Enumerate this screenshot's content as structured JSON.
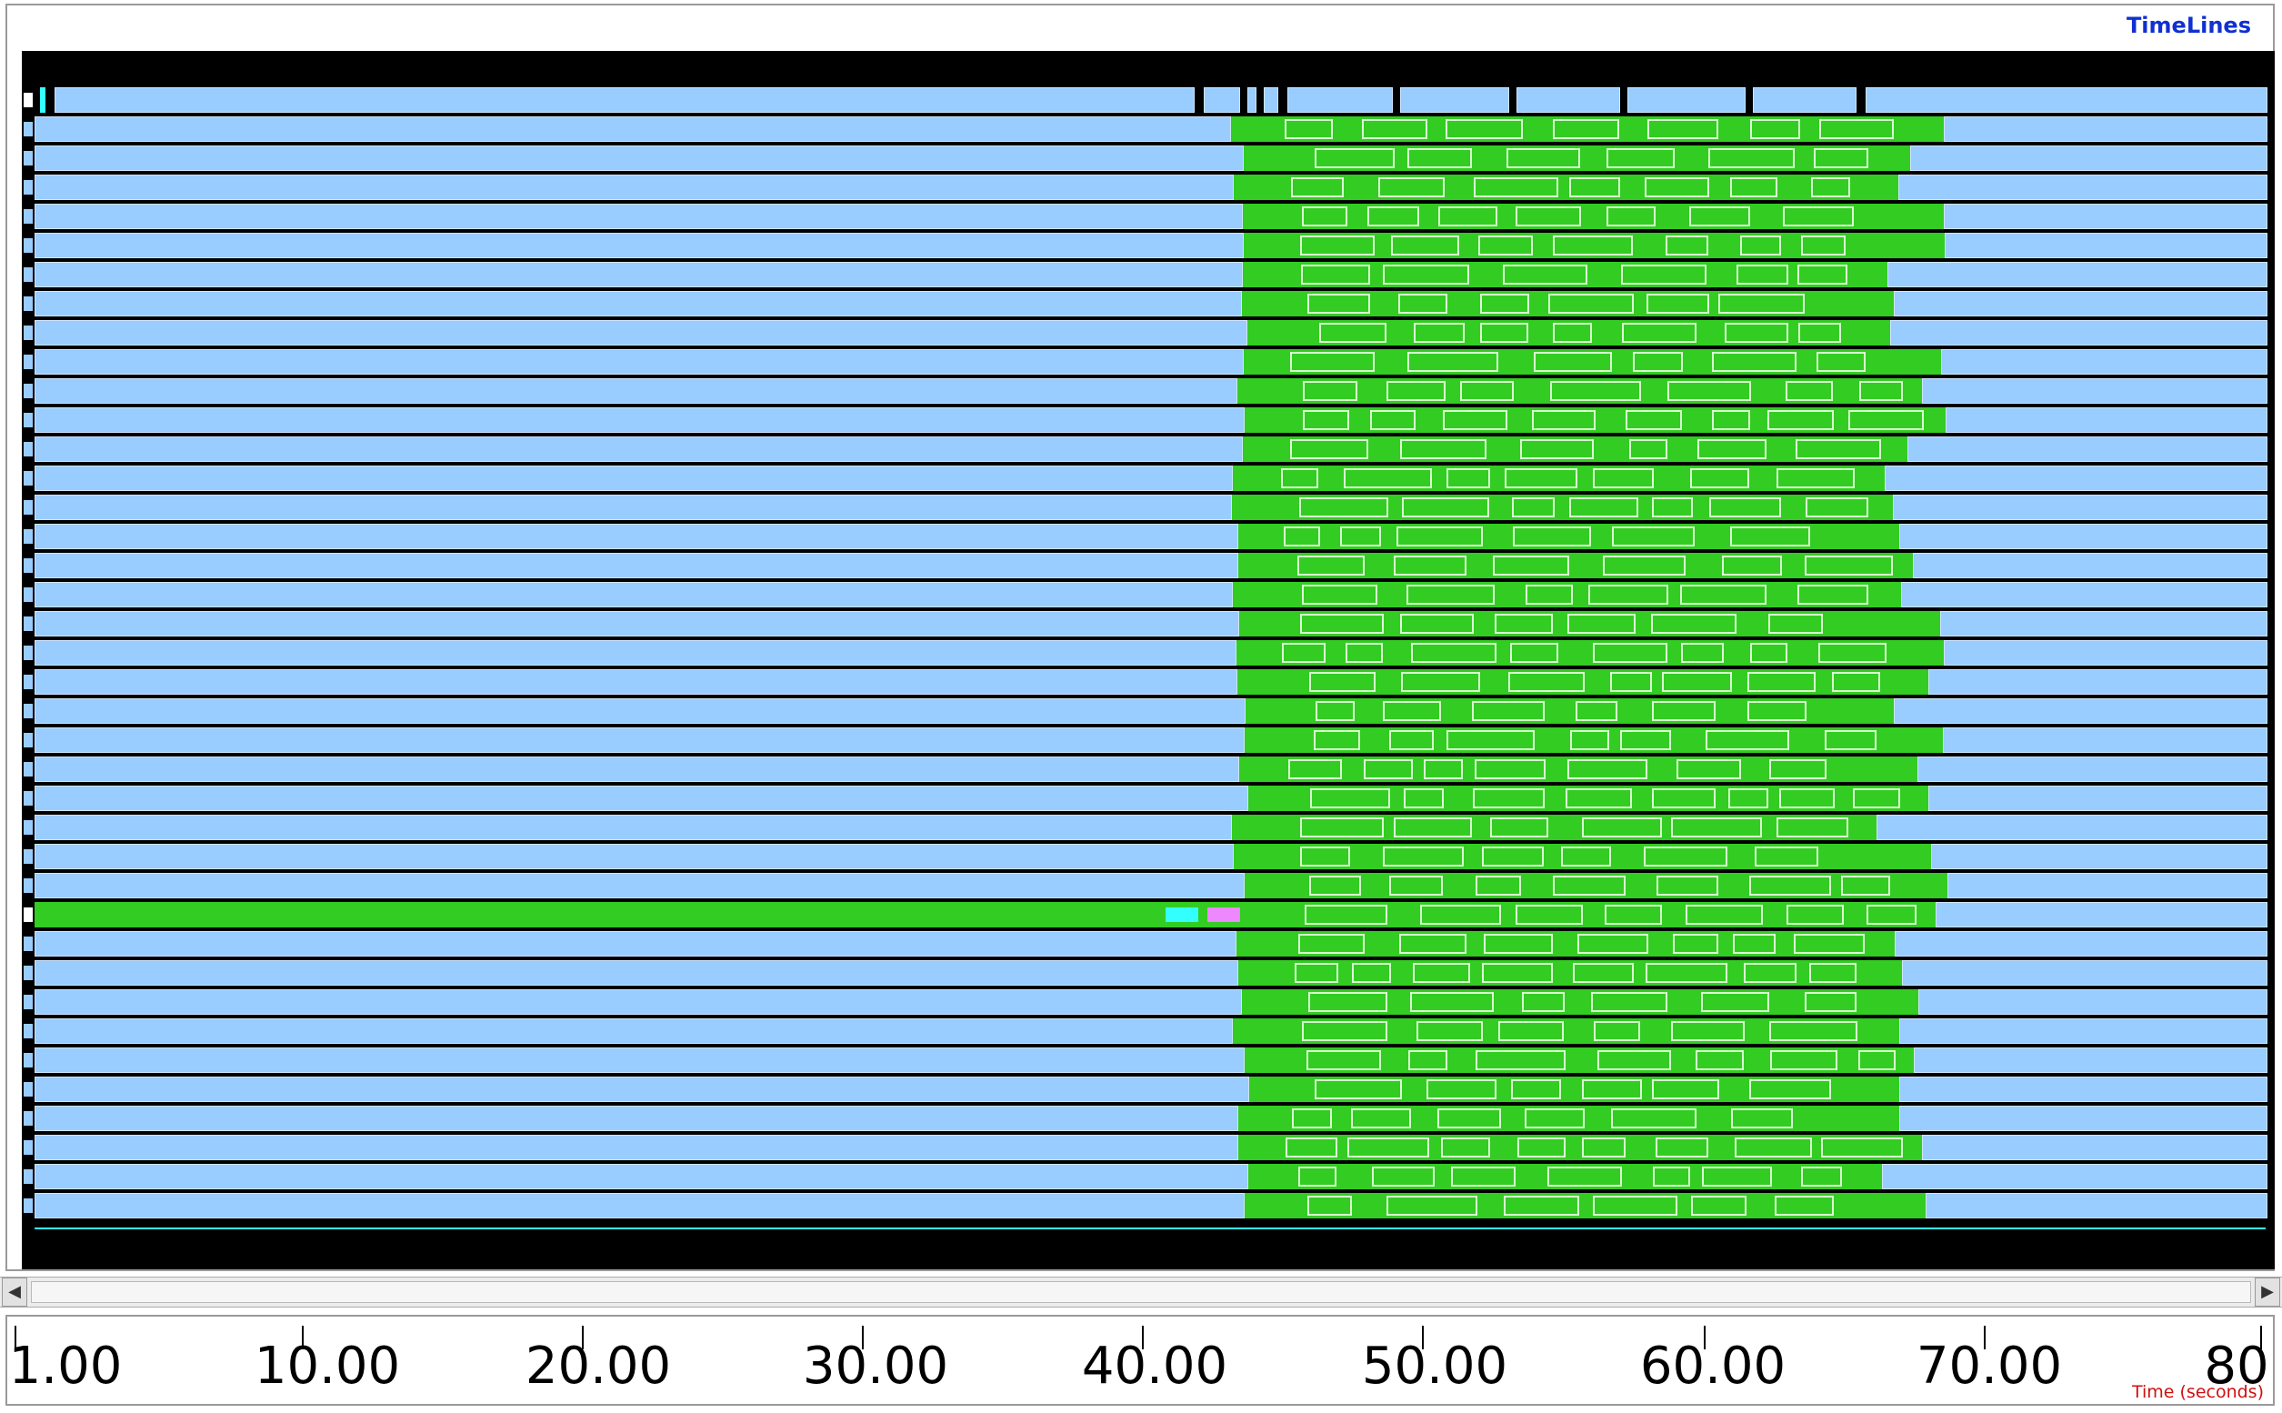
{
  "panel": {
    "title": "TimeLines"
  },
  "axis": {
    "ticks": [
      "1.00",
      "10.00",
      "20.00",
      "30.00",
      "40.00",
      "50.00",
      "60.00",
      "70.00",
      "80"
    ],
    "label": "Time (seconds)"
  },
  "scrollbar": {
    "left_icon": "left-arrow-icon",
    "right_icon": "right-arrow-icon"
  },
  "colors": {
    "idle": "#99ccff",
    "compute": "#33cc22",
    "wait": "#000000",
    "highlight_cyan": "#33ffff",
    "highlight_magenta": "#ee88ff",
    "axis_label": "#d01010",
    "title": "#1030d0"
  },
  "timeline": {
    "rows": 39
  }
}
